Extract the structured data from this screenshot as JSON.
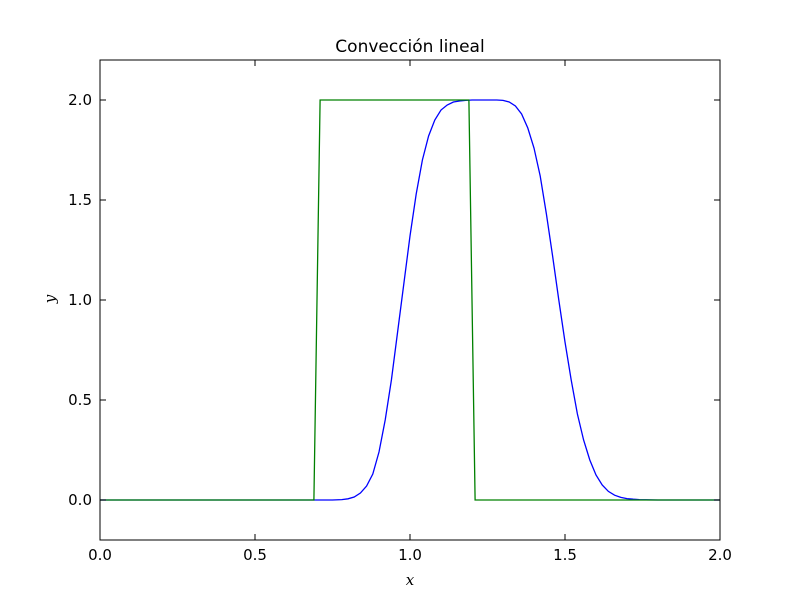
{
  "chart_data": {
    "type": "line",
    "title": "Convección lineal",
    "xlabel": "x",
    "ylabel": "y",
    "xlim": [
      0.0,
      2.0
    ],
    "ylim": [
      -0.2,
      2.2
    ],
    "xticks": [
      0.0,
      0.5,
      1.0,
      1.5,
      2.0
    ],
    "xtick_labels": [
      "0.0",
      "0.5",
      "1.0",
      "1.5",
      "2.0"
    ],
    "yticks": [
      0.0,
      0.5,
      1.0,
      1.5,
      2.0
    ],
    "ytick_labels": [
      "0.0",
      "0.5",
      "1.0",
      "1.5",
      "2.0"
    ],
    "grid": false,
    "series": [
      {
        "color": "#0000ff",
        "x": [
          0.0,
          0.6,
          0.75,
          0.78,
          0.8,
          0.82,
          0.84,
          0.86,
          0.88,
          0.9,
          0.92,
          0.94,
          0.96,
          0.98,
          1.0,
          1.02,
          1.04,
          1.06,
          1.08,
          1.1,
          1.12,
          1.14,
          1.16,
          1.18,
          1.2,
          1.22,
          1.24,
          1.26,
          1.28,
          1.3,
          1.32,
          1.34,
          1.36,
          1.38,
          1.4,
          1.42,
          1.44,
          1.46,
          1.48,
          1.5,
          1.52,
          1.54,
          1.56,
          1.58,
          1.6,
          1.62,
          1.64,
          1.66,
          1.68,
          1.7,
          1.72,
          1.74,
          1.76,
          1.8,
          2.0
        ],
        "y": [
          0.0,
          0.0,
          0.0,
          0.002,
          0.006,
          0.015,
          0.035,
          0.07,
          0.13,
          0.24,
          0.4,
          0.6,
          0.84,
          1.08,
          1.32,
          1.53,
          1.7,
          1.82,
          1.9,
          1.95,
          1.975,
          1.99,
          1.995,
          1.998,
          2.0,
          2.0,
          2.0,
          2.0,
          2.0,
          1.998,
          1.99,
          1.97,
          1.93,
          1.86,
          1.76,
          1.62,
          1.43,
          1.22,
          1.0,
          0.79,
          0.6,
          0.43,
          0.3,
          0.2,
          0.125,
          0.075,
          0.043,
          0.024,
          0.013,
          0.007,
          0.004,
          0.002,
          0.001,
          0.0,
          0.0
        ]
      },
      {
        "color": "#008000",
        "x": [
          0.0,
          0.69,
          0.71,
          1.19,
          1.21,
          2.0
        ],
        "y": [
          0.0,
          0.0,
          2.0,
          2.0,
          0.0,
          0.0
        ]
      }
    ]
  }
}
